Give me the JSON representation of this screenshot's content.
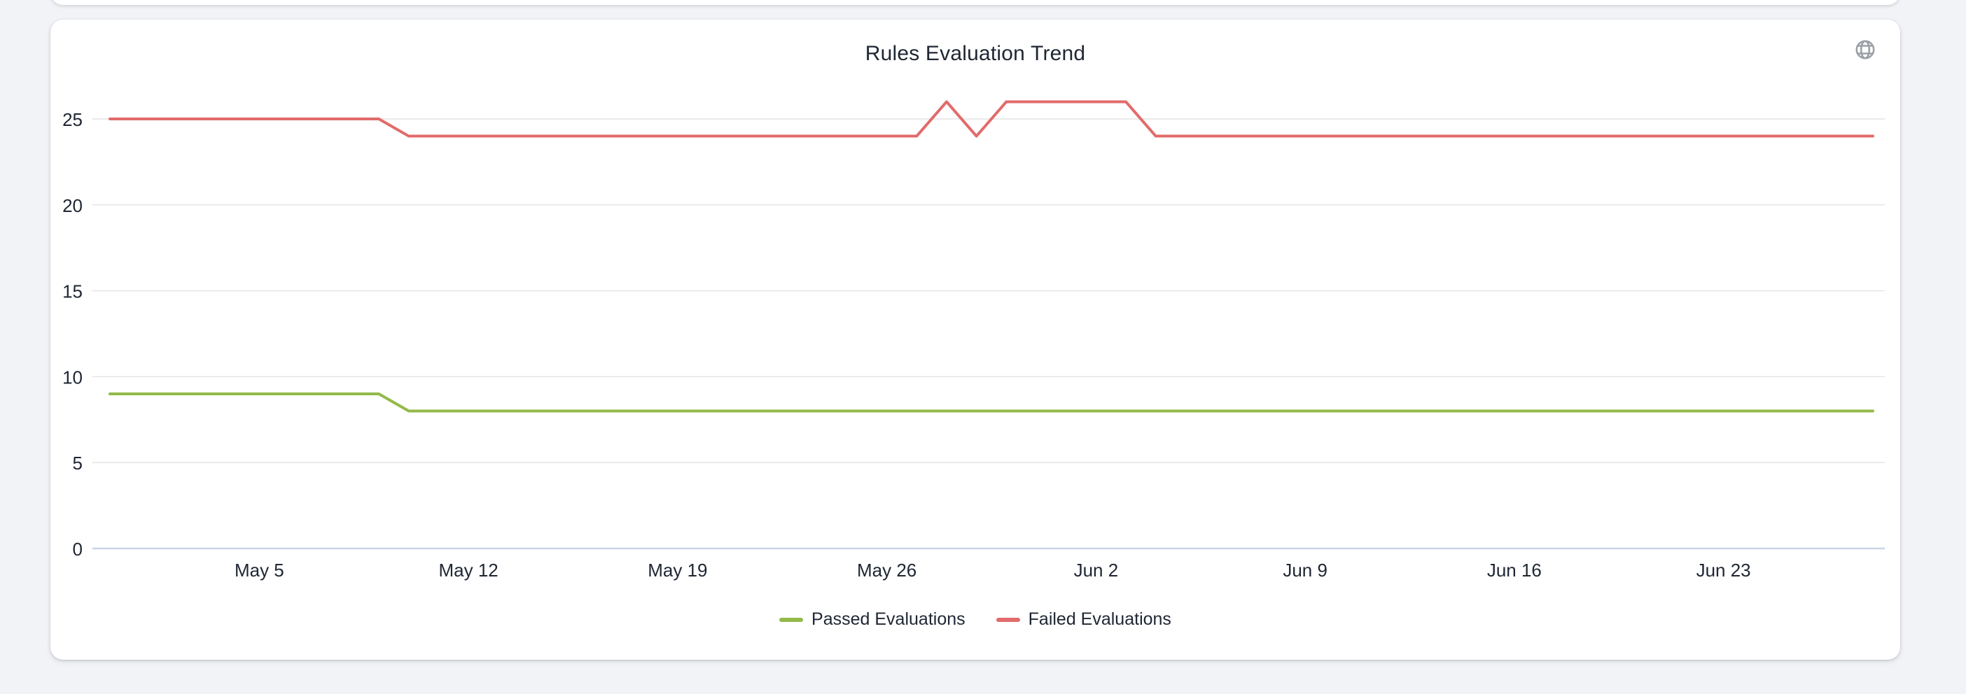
{
  "card": {
    "title": "Rules Evaluation Trend"
  },
  "icons": {
    "globe": {
      "name": "globe-icon",
      "color": "#9aa0a6"
    }
  },
  "chart_data": {
    "type": "line",
    "title": "Rules Evaluation Trend",
    "xlabel": "",
    "ylabel": "",
    "grid": true,
    "legend_position": "bottom",
    "ylim": [
      0,
      25
    ],
    "y_ticks": [
      0,
      5,
      10,
      15,
      20,
      25
    ],
    "x": [
      "Apr 30",
      "May 1",
      "May 2",
      "May 3",
      "May 4",
      "May 5",
      "May 6",
      "May 7",
      "May 8",
      "May 9",
      "May 10",
      "May 11",
      "May 12",
      "May 13",
      "May 14",
      "May 15",
      "May 16",
      "May 17",
      "May 18",
      "May 19",
      "May 20",
      "May 21",
      "May 22",
      "May 23",
      "May 24",
      "May 25",
      "May 26",
      "May 27",
      "May 28",
      "May 29",
      "May 30",
      "May 31",
      "Jun 1",
      "Jun 2",
      "Jun 3",
      "Jun 4",
      "Jun 5",
      "Jun 6",
      "Jun 7",
      "Jun 8",
      "Jun 9",
      "Jun 10",
      "Jun 11",
      "Jun 12",
      "Jun 13",
      "Jun 14",
      "Jun 15",
      "Jun 16",
      "Jun 17",
      "Jun 18",
      "Jun 19",
      "Jun 20",
      "Jun 21",
      "Jun 22",
      "Jun 23",
      "Jun 24",
      "Jun 25",
      "Jun 26",
      "Jun 27",
      "Jun 28"
    ],
    "x_ticks": [
      {
        "label": "May 5",
        "index": 5
      },
      {
        "label": "May 12",
        "index": 12
      },
      {
        "label": "May 19",
        "index": 19
      },
      {
        "label": "May 26",
        "index": 26
      },
      {
        "label": "Jun 2",
        "index": 33
      },
      {
        "label": "Jun 9",
        "index": 40
      },
      {
        "label": "Jun 16",
        "index": 47
      },
      {
        "label": "Jun 23",
        "index": 54
      }
    ],
    "series": [
      {
        "name": "Passed Evaluations",
        "color": "#93ba49",
        "values": [
          9,
          9,
          9,
          9,
          9,
          9,
          9,
          9,
          9,
          9,
          8,
          8,
          8,
          8,
          8,
          8,
          8,
          8,
          8,
          8,
          8,
          8,
          8,
          8,
          8,
          8,
          8,
          8,
          8,
          8,
          8,
          8,
          8,
          8,
          8,
          8,
          8,
          8,
          8,
          8,
          8,
          8,
          8,
          8,
          8,
          8,
          8,
          8,
          8,
          8,
          8,
          8,
          8,
          8,
          8,
          8,
          8,
          8,
          8,
          8
        ]
      },
      {
        "name": "Failed Evaluations",
        "color": "#e26b6b",
        "values": [
          25,
          25,
          25,
          25,
          25,
          25,
          25,
          25,
          25,
          25,
          24,
          24,
          24,
          24,
          24,
          24,
          24,
          24,
          24,
          24,
          24,
          24,
          24,
          24,
          24,
          24,
          24,
          24,
          26,
          24,
          26,
          26,
          26,
          26,
          26,
          24,
          24,
          24,
          24,
          24,
          24,
          24,
          24,
          24,
          24,
          24,
          24,
          24,
          24,
          24,
          24,
          24,
          24,
          24,
          24,
          24,
          24,
          24,
          24,
          24
        ]
      }
    ],
    "colors": {
      "grid": "#e4e4e4",
      "zero_line": "#c9d5e8",
      "text": "#1f2633",
      "background": "#ffffff",
      "page_background": "#f1f3f6"
    }
  }
}
